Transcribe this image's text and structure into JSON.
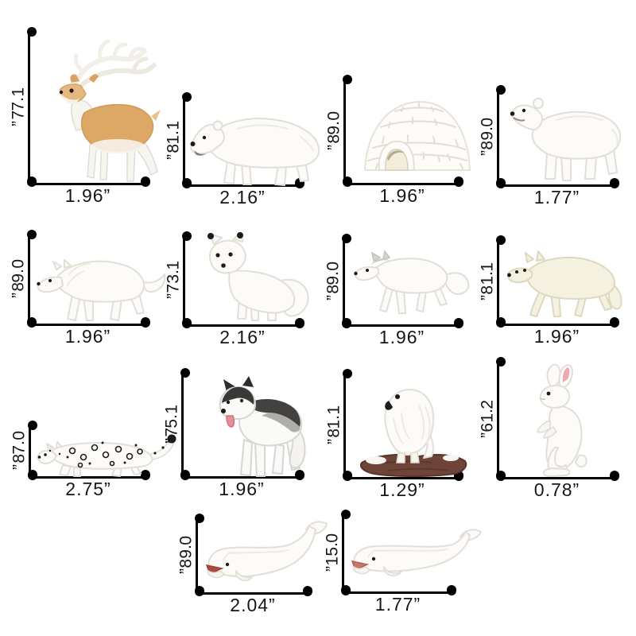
{
  "page": {
    "background": "#ffffff",
    "style": {
      "dimension_line_color": "#000000",
      "dimension_label_color": "#161616",
      "unit": "inches"
    }
  },
  "items": [
    {
      "name": "reindeer",
      "height": "1.77”",
      "width": "1.96”"
    },
    {
      "name": "polar-bear",
      "height": "1.18”",
      "width": "2.16”"
    },
    {
      "name": "igloo",
      "height": "0.98”",
      "width": "1.96”"
    },
    {
      "name": "polar-bear-cub",
      "height": "0.98”",
      "width": "1.77”"
    },
    {
      "name": "arctic-wolf",
      "height": "0.98”",
      "width": "1.96”"
    },
    {
      "name": "arctic-fox",
      "height": "1.37”",
      "width": "2.16”"
    },
    {
      "name": "arctic-fox-walking",
      "height": "0.98”",
      "width": "1.96”"
    },
    {
      "name": "arctic-wolf-cream",
      "height": "1.18”",
      "width": "1.96”"
    },
    {
      "name": "snow-leopard",
      "height": "0.78”",
      "width": "2.75”"
    },
    {
      "name": "husky",
      "height": "1.57”",
      "width": "1.96”"
    },
    {
      "name": "snowy-owl",
      "height": "1.18”",
      "width": "1.29”"
    },
    {
      "name": "arctic-hare",
      "height": "2.16”",
      "width": "0.78”"
    },
    {
      "name": "beluga-whale",
      "height": "0.98”",
      "width": "2.04”"
    },
    {
      "name": "beluga-whale-small",
      "height": "0.51”",
      "width": "1.77”"
    }
  ]
}
